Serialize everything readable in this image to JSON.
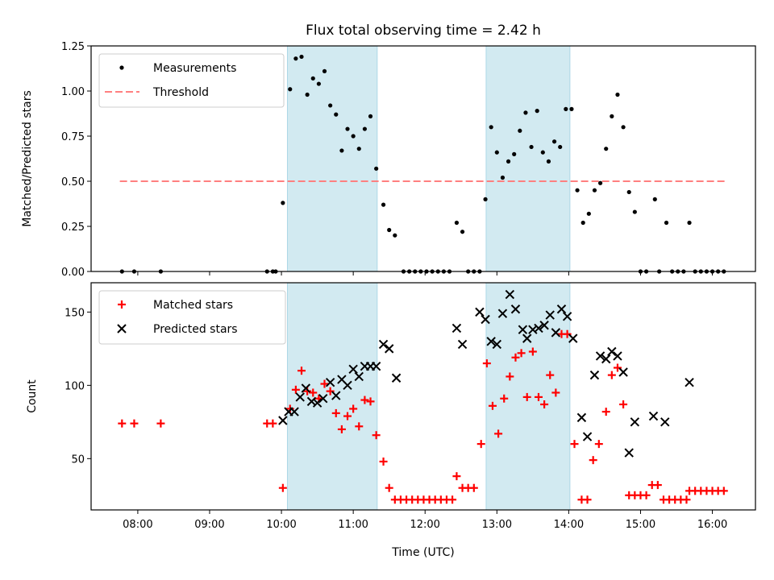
{
  "chart_data": {
    "type": "scatter",
    "title": "Flux total observing time = 2.42 h",
    "xlabel": "Time (UTC)",
    "x_ticks": [
      "08:00",
      "09:00",
      "10:00",
      "11:00",
      "12:00",
      "13:00",
      "14:00",
      "15:00",
      "16:00"
    ],
    "x_range_hours": [
      7.35,
      16.6
    ],
    "shaded_intervals_utc": [
      [
        "10:05",
        "11:20"
      ],
      [
        "12:51",
        "14:01"
      ]
    ],
    "shade_color": "#add8e6",
    "panels": [
      {
        "ylabel": "Matched/Predicted stars",
        "ylim": [
          0,
          1.25
        ],
        "y_ticks": [
          "0.00",
          "0.25",
          "0.50",
          "0.75",
          "1.00",
          "1.25"
        ],
        "y_tick_values": [
          0,
          0.25,
          0.5,
          0.75,
          1.0,
          1.25
        ],
        "legend": [
          "Measurements",
          "Threshold"
        ],
        "legend_placement": "top-left",
        "threshold": {
          "value": 0.5,
          "x_from_hours": 7.75,
          "x_to_hours": 16.2,
          "color": "#ff8080"
        },
        "series": [
          {
            "name": "Measurements",
            "color": "#000000",
            "marker": "dot",
            "points": [
              [
                7.78,
                0
              ],
              [
                7.95,
                0
              ],
              [
                8.32,
                0
              ],
              [
                9.8,
                0
              ],
              [
                9.88,
                0
              ],
              [
                9.92,
                0
              ],
              [
                10.02,
                0.38
              ],
              [
                10.12,
                1.01
              ],
              [
                10.2,
                1.18
              ],
              [
                10.28,
                1.19
              ],
              [
                10.36,
                0.98
              ],
              [
                10.44,
                1.07
              ],
              [
                10.52,
                1.04
              ],
              [
                10.6,
                1.11
              ],
              [
                10.68,
                0.92
              ],
              [
                10.76,
                0.87
              ],
              [
                10.84,
                0.67
              ],
              [
                10.92,
                0.79
              ],
              [
                11.0,
                0.75
              ],
              [
                11.08,
                0.68
              ],
              [
                11.16,
                0.79
              ],
              [
                11.24,
                0.86
              ],
              [
                11.32,
                0.57
              ],
              [
                11.42,
                0.37
              ],
              [
                11.5,
                0.23
              ],
              [
                11.58,
                0.2
              ],
              [
                11.7,
                0
              ],
              [
                11.78,
                0
              ],
              [
                11.86,
                0
              ],
              [
                11.94,
                0
              ],
              [
                12.02,
                0
              ],
              [
                12.1,
                0
              ],
              [
                12.18,
                0
              ],
              [
                12.26,
                0
              ],
              [
                12.34,
                0
              ],
              [
                12.44,
                0.27
              ],
              [
                12.52,
                0.22
              ],
              [
                12.6,
                0
              ],
              [
                12.68,
                0
              ],
              [
                12.76,
                0
              ],
              [
                12.84,
                0.4
              ],
              [
                12.92,
                0.8
              ],
              [
                13.0,
                0.66
              ],
              [
                13.08,
                0.52
              ],
              [
                13.16,
                0.61
              ],
              [
                13.24,
                0.65
              ],
              [
                13.32,
                0.78
              ],
              [
                13.4,
                0.88
              ],
              [
                13.48,
                0.69
              ],
              [
                13.56,
                0.89
              ],
              [
                13.64,
                0.66
              ],
              [
                13.72,
                0.61
              ],
              [
                13.8,
                0.72
              ],
              [
                13.88,
                0.69
              ],
              [
                13.96,
                0.9
              ],
              [
                14.04,
                0.9
              ],
              [
                14.12,
                0.45
              ],
              [
                14.2,
                0.27
              ],
              [
                14.28,
                0.32
              ],
              [
                14.36,
                0.45
              ],
              [
                14.44,
                0.49
              ],
              [
                14.52,
                0.68
              ],
              [
                14.6,
                0.86
              ],
              [
                14.68,
                0.98
              ],
              [
                14.76,
                0.8
              ],
              [
                14.84,
                0.44
              ],
              [
                14.92,
                0.33
              ],
              [
                15.0,
                0
              ],
              [
                15.08,
                0
              ],
              [
                15.2,
                0.4
              ],
              [
                15.26,
                0
              ],
              [
                15.36,
                0.27
              ],
              [
                15.44,
                0
              ],
              [
                15.52,
                0
              ],
              [
                15.6,
                0
              ],
              [
                15.68,
                0.27
              ],
              [
                15.76,
                0
              ],
              [
                15.84,
                0
              ],
              [
                15.92,
                0
              ],
              [
                16.0,
                0
              ],
              [
                16.08,
                0
              ],
              [
                16.16,
                0
              ]
            ]
          }
        ]
      },
      {
        "ylabel": "Count",
        "ylim": [
          15,
          170
        ],
        "y_ticks": [
          "50",
          "100",
          "150"
        ],
        "y_tick_values": [
          50,
          100,
          150
        ],
        "legend": [
          "Matched stars",
          "Predicted stars"
        ],
        "legend_placement": "top-left",
        "series": [
          {
            "name": "Matched stars",
            "color": "#ff0000",
            "marker": "plus",
            "points": [
              [
                7.78,
                74
              ],
              [
                7.95,
                74
              ],
              [
                8.32,
                74
              ],
              [
                9.8,
                74
              ],
              [
                9.88,
                74
              ],
              [
                10.02,
                30
              ],
              [
                10.12,
                84
              ],
              [
                10.2,
                97
              ],
              [
                10.28,
                110
              ],
              [
                10.36,
                96
              ],
              [
                10.44,
                95
              ],
              [
                10.52,
                91
              ],
              [
                10.6,
                101
              ],
              [
                10.68,
                96
              ],
              [
                10.76,
                81
              ],
              [
                10.84,
                70
              ],
              [
                10.92,
                79
              ],
              [
                11.0,
                84
              ],
              [
                11.08,
                72
              ],
              [
                11.16,
                90
              ],
              [
                11.24,
                89
              ],
              [
                11.32,
                66
              ],
              [
                11.42,
                48
              ],
              [
                11.5,
                30
              ],
              [
                11.58,
                22
              ],
              [
                11.66,
                22
              ],
              [
                11.74,
                22
              ],
              [
                11.82,
                22
              ],
              [
                11.9,
                22
              ],
              [
                11.98,
                22
              ],
              [
                12.06,
                22
              ],
              [
                12.14,
                22
              ],
              [
                12.22,
                22
              ],
              [
                12.3,
                22
              ],
              [
                12.38,
                22
              ],
              [
                12.44,
                38
              ],
              [
                12.52,
                30
              ],
              [
                12.6,
                30
              ],
              [
                12.68,
                30
              ],
              [
                12.78,
                60
              ],
              [
                12.86,
                115
              ],
              [
                12.94,
                86
              ],
              [
                13.02,
                67
              ],
              [
                13.1,
                91
              ],
              [
                13.18,
                106
              ],
              [
                13.26,
                119
              ],
              [
                13.34,
                122
              ],
              [
                13.42,
                92
              ],
              [
                13.5,
                123
              ],
              [
                13.58,
                92
              ],
              [
                13.66,
                87
              ],
              [
                13.74,
                107
              ],
              [
                13.82,
                95
              ],
              [
                13.9,
                135
              ],
              [
                13.98,
                135
              ],
              [
                14.08,
                60
              ],
              [
                14.18,
                22
              ],
              [
                14.26,
                22
              ],
              [
                14.34,
                49
              ],
              [
                14.42,
                60
              ],
              [
                14.52,
                82
              ],
              [
                14.6,
                107
              ],
              [
                14.68,
                112
              ],
              [
                14.76,
                87
              ],
              [
                14.84,
                25
              ],
              [
                14.92,
                25
              ],
              [
                15.0,
                25
              ],
              [
                15.08,
                25
              ],
              [
                15.16,
                32
              ],
              [
                15.24,
                32
              ],
              [
                15.32,
                22
              ],
              [
                15.4,
                22
              ],
              [
                15.48,
                22
              ],
              [
                15.56,
                22
              ],
              [
                15.64,
                22
              ],
              [
                15.68,
                28
              ],
              [
                15.76,
                28
              ],
              [
                15.84,
                28
              ],
              [
                15.92,
                28
              ],
              [
                16.0,
                28
              ],
              [
                16.08,
                28
              ],
              [
                16.16,
                28
              ]
            ]
          },
          {
            "name": "Predicted stars",
            "color": "#000000",
            "marker": "cross",
            "points": [
              [
                10.02,
                76
              ],
              [
                10.1,
                82
              ],
              [
                10.18,
                82
              ],
              [
                10.26,
                92
              ],
              [
                10.34,
                98
              ],
              [
                10.42,
                89
              ],
              [
                10.5,
                88
              ],
              [
                10.58,
                91
              ],
              [
                10.68,
                102
              ],
              [
                10.76,
                93
              ],
              [
                10.84,
                104
              ],
              [
                10.92,
                100
              ],
              [
                11.0,
                111
              ],
              [
                11.08,
                106
              ],
              [
                11.16,
                113
              ],
              [
                11.24,
                113
              ],
              [
                11.32,
                113
              ],
              [
                11.42,
                128
              ],
              [
                11.5,
                125
              ],
              [
                11.6,
                105
              ],
              [
                12.44,
                139
              ],
              [
                12.52,
                128
              ],
              [
                12.76,
                150
              ],
              [
                12.84,
                145
              ],
              [
                12.92,
                130
              ],
              [
                13.0,
                128
              ],
              [
                13.08,
                149
              ],
              [
                13.18,
                162
              ],
              [
                13.26,
                152
              ],
              [
                13.36,
                138
              ],
              [
                13.42,
                132
              ],
              [
                13.5,
                138
              ],
              [
                13.58,
                139
              ],
              [
                13.66,
                141
              ],
              [
                13.74,
                148
              ],
              [
                13.82,
                136
              ],
              [
                13.9,
                152
              ],
              [
                13.98,
                147
              ],
              [
                14.06,
                132
              ],
              [
                14.18,
                78
              ],
              [
                14.26,
                65
              ],
              [
                14.36,
                107
              ],
              [
                14.44,
                120
              ],
              [
                14.52,
                118
              ],
              [
                14.6,
                123
              ],
              [
                14.68,
                120
              ],
              [
                14.76,
                109
              ],
              [
                14.84,
                54
              ],
              [
                14.92,
                75
              ],
              [
                15.18,
                79
              ],
              [
                15.34,
                75
              ],
              [
                15.68,
                102
              ]
            ]
          }
        ]
      }
    ]
  }
}
